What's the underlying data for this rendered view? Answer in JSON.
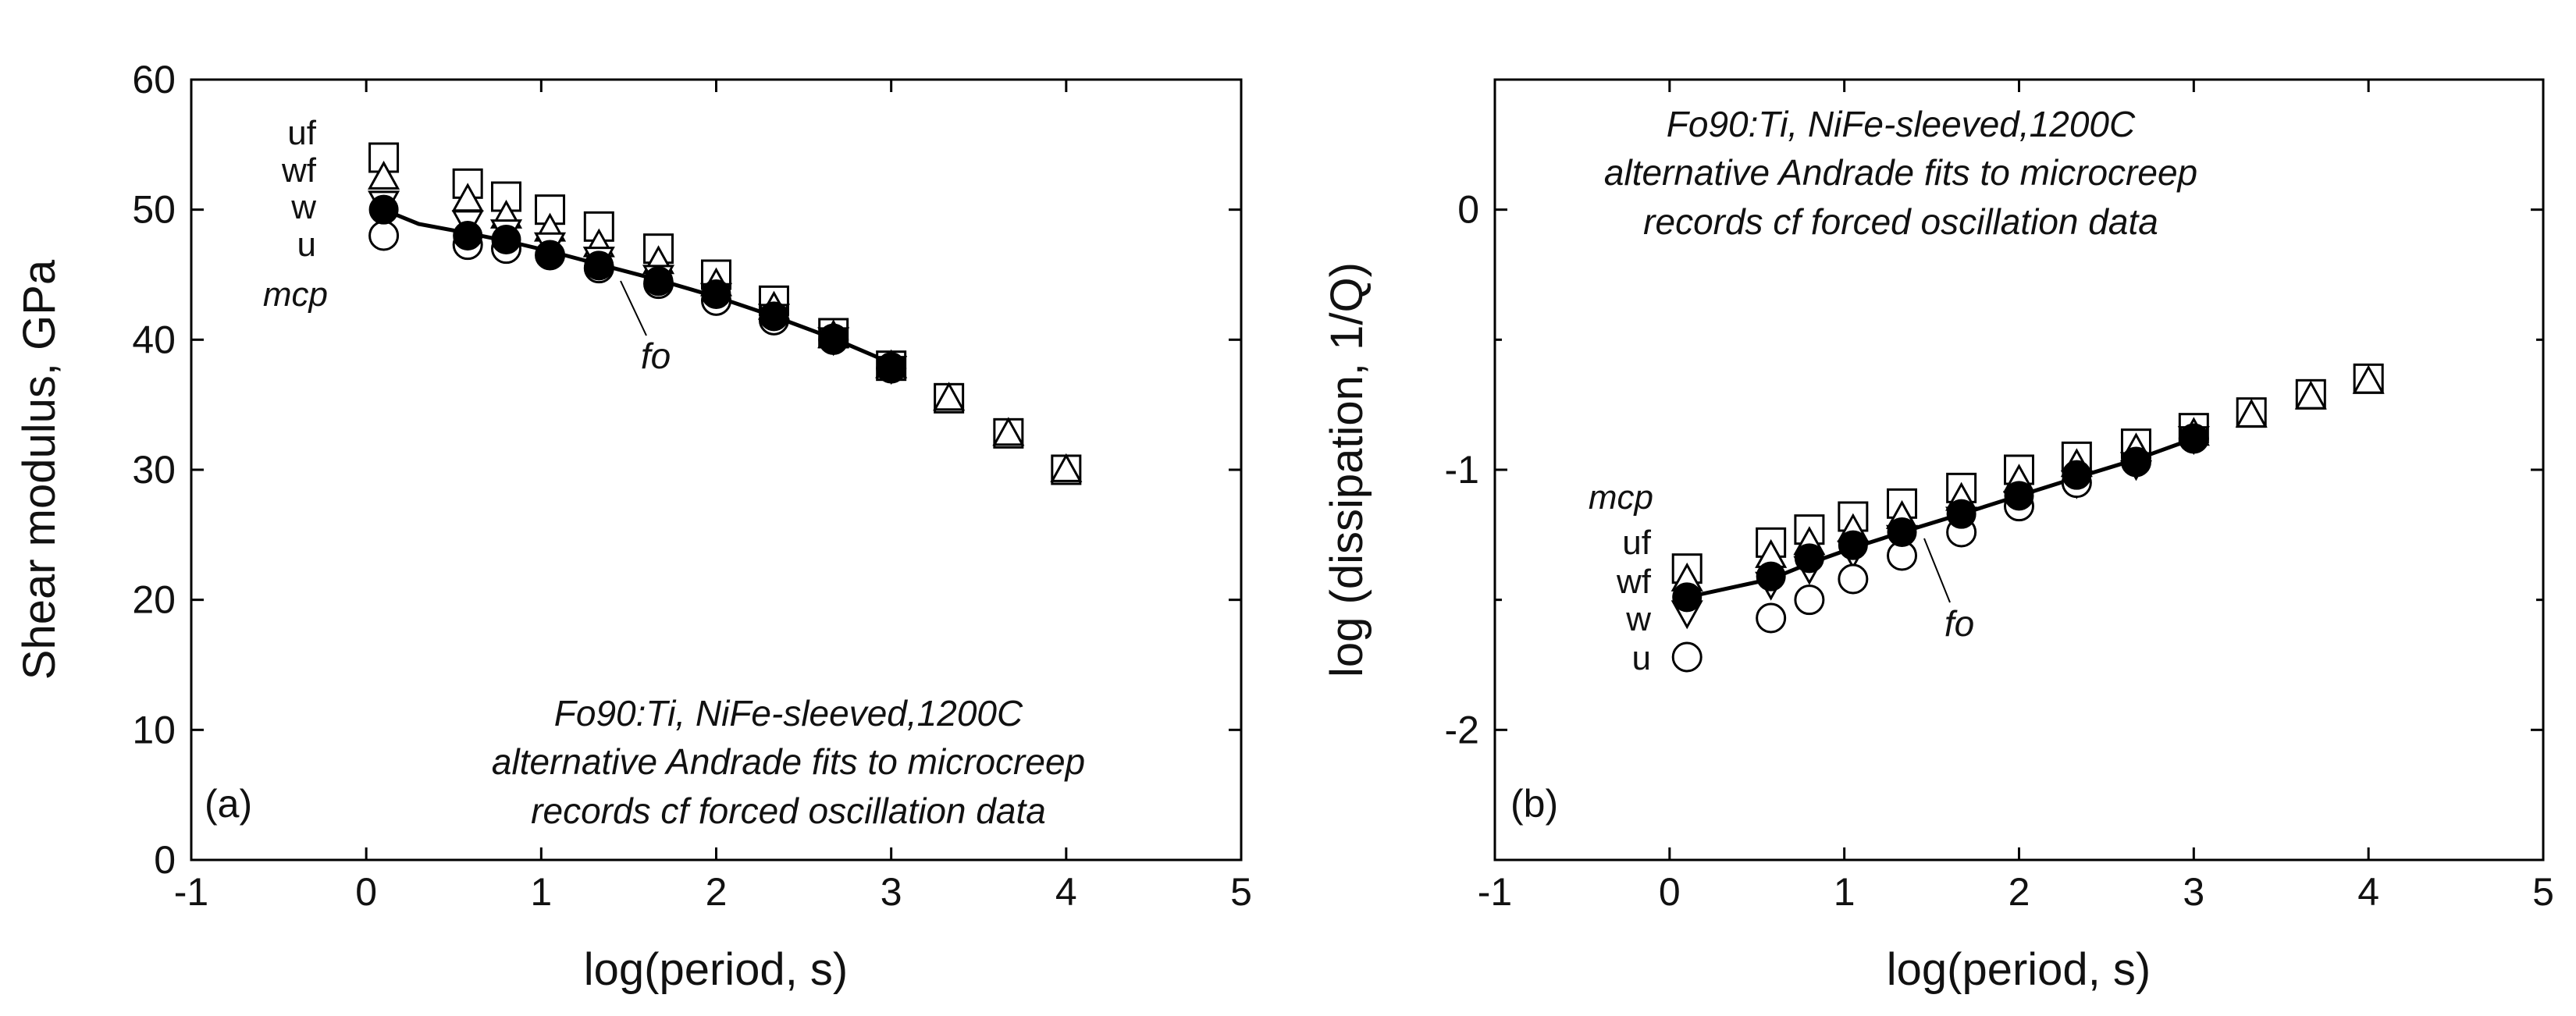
{
  "chart_data": [
    {
      "type": "scatter",
      "panel_label": "(a)",
      "xlabel": "log(period, s)",
      "ylabel": "Shear modulus, GPa",
      "xlim": [
        -1,
        5
      ],
      "ylim": [
        0,
        60
      ],
      "xticks": [
        "-1",
        "0",
        "1",
        "2",
        "3",
        "4",
        "5"
      ],
      "yticks": [
        "0",
        "10",
        "20",
        "30",
        "40",
        "50",
        "60"
      ],
      "annotation_lines": [
        "Fo90:Ti, NiFe-sleeved,1200C",
        "alternative Andrade fits to microcreep",
        "records cf forced oscillation data"
      ],
      "legend_labels": [
        "uf",
        "wf",
        "w",
        "u",
        "mcp"
      ],
      "fo_label": "fo",
      "x": [
        0.1,
        0.58,
        0.8,
        1.05,
        1.33,
        1.67,
        2.0,
        2.33,
        2.67,
        3.0,
        3.33,
        3.67,
        4.0
      ],
      "series": [
        {
          "name": "uf",
          "marker": "open-square",
          "values": [
            54.0,
            52.0,
            51.0,
            50.0,
            48.7,
            47.0,
            45.0,
            43.0,
            40.5,
            38.0,
            35.5,
            32.8,
            30.0
          ]
        },
        {
          "name": "wf",
          "marker": "open-triangle-up",
          "values": [
            52.5,
            50.8,
            49.5,
            48.5,
            47.3,
            46.0,
            44.3,
            42.5,
            40.3,
            38.0,
            35.5,
            32.8,
            30.0
          ]
        },
        {
          "name": "w",
          "marker": "open-triangle-down",
          "values": [
            50.5,
            49.0,
            48.3,
            47.3,
            46.2,
            44.8,
            43.4,
            41.8,
            40.0,
            37.8,
            null,
            null,
            null
          ]
        },
        {
          "name": "u",
          "marker": "open-circle",
          "values": [
            48.0,
            47.3,
            47.0,
            46.5,
            45.5,
            44.3,
            43.0,
            41.5,
            40.0,
            37.8,
            null,
            null,
            null
          ]
        },
        {
          "name": "fo",
          "marker": "filled-circle",
          "values": [
            50.0,
            48.0,
            47.7,
            46.5,
            45.7,
            44.5,
            43.5,
            41.8,
            40.1,
            37.9,
            null,
            null,
            null
          ]
        }
      ],
      "mcp_curve": {
        "x": [
          0.05,
          0.1,
          0.3,
          0.58,
          0.8,
          1.05,
          1.33,
          1.67,
          2.0,
          2.33,
          2.67,
          3.0
        ],
        "y": [
          51.0,
          50.0,
          48.9,
          48.2,
          47.6,
          46.8,
          45.8,
          44.6,
          43.3,
          41.8,
          40.1,
          38.2
        ]
      }
    },
    {
      "type": "scatter",
      "panel_label": "(b)",
      "xlabel": "log(period, s)",
      "ylabel": "log (dissipation, 1/Q)",
      "xlim": [
        -1,
        5
      ],
      "ylim": [
        -2.5,
        0.5
      ],
      "xticks": [
        "-1",
        "0",
        "1",
        "2",
        "3",
        "4",
        "5"
      ],
      "yticks": [
        "-2",
        "-1",
        "0"
      ],
      "annotation_lines": [
        "Fo90:Ti, NiFe-sleeved,1200C",
        "alternative Andrade fits to microcreep",
        "records cf forced oscillation data"
      ],
      "legend_labels": [
        "mcp",
        "uf",
        "wf",
        "w",
        "u"
      ],
      "fo_label": "fo",
      "x": [
        0.1,
        0.58,
        0.8,
        1.05,
        1.33,
        1.67,
        2.0,
        2.33,
        2.67,
        3.0,
        3.33,
        3.67,
        4.0
      ],
      "series": [
        {
          "name": "uf",
          "marker": "open-square",
          "values": [
            -1.38,
            -1.28,
            -1.23,
            -1.18,
            -1.13,
            -1.07,
            -1.0,
            -0.95,
            -0.9,
            -0.84,
            -0.78,
            -0.71,
            -0.65
          ]
        },
        {
          "name": "wf",
          "marker": "open-triangle-up",
          "values": [
            -1.42,
            -1.33,
            -1.28,
            -1.23,
            -1.18,
            -1.11,
            -1.04,
            -0.98,
            -0.92,
            -0.86,
            -0.79,
            -0.72,
            -0.66
          ]
        },
        {
          "name": "w",
          "marker": "open-triangle-down",
          "values": [
            -1.55,
            -1.44,
            -1.38,
            -1.32,
            -1.26,
            -1.19,
            -1.13,
            -1.05,
            -0.98,
            -0.88,
            null,
            null,
            null
          ]
        },
        {
          "name": "u",
          "marker": "open-circle",
          "values": [
            -1.72,
            -1.57,
            -1.5,
            -1.42,
            -1.33,
            -1.24,
            -1.14,
            -1.05,
            -0.97,
            -0.88,
            null,
            null,
            null
          ]
        },
        {
          "name": "fo",
          "marker": "filled-circle",
          "values": [
            -1.49,
            -1.41,
            -1.34,
            -1.29,
            -1.24,
            -1.17,
            -1.1,
            -1.02,
            -0.97,
            -0.88,
            null,
            null,
            null
          ]
        }
      ],
      "mcp_curve": {
        "x": [
          0.1,
          0.58,
          0.8,
          1.05,
          1.33,
          1.67,
          2.0,
          2.33,
          2.67,
          3.0
        ],
        "y": [
          -1.49,
          -1.42,
          -1.36,
          -1.3,
          -1.24,
          -1.17,
          -1.1,
          -1.03,
          -0.96,
          -0.88
        ]
      }
    }
  ]
}
